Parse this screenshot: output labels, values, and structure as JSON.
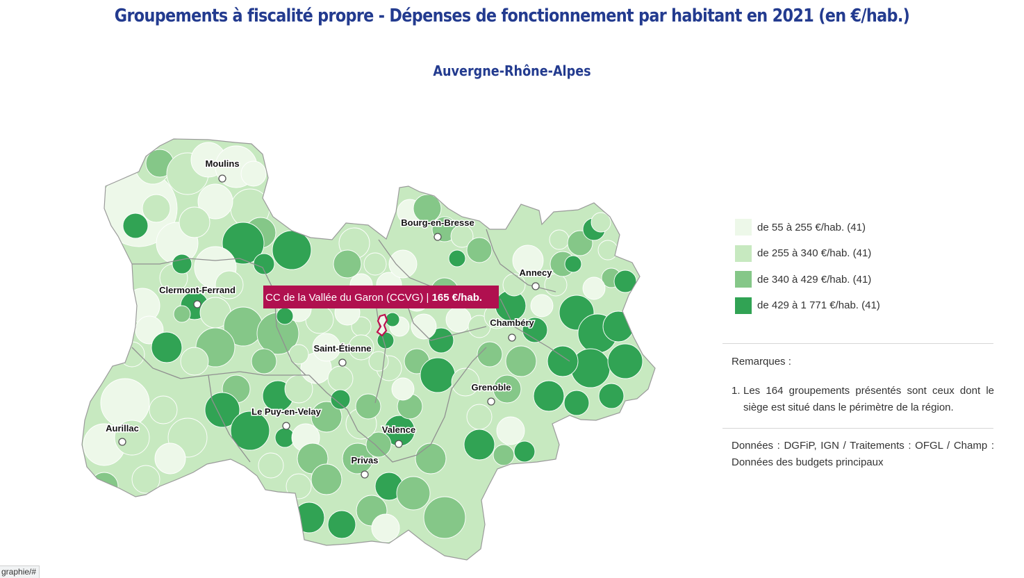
{
  "title": "Groupements à fiscalité propre - Dépenses de fonctionnement par habitant en 2021 (en €/hab.)",
  "subtitle": "Auvergne-Rhône-Alpes",
  "colors": {
    "class1": "#edf8e9",
    "class2": "#c7e9c0",
    "class3": "#85c788",
    "class4": "#31a354",
    "border": "#ffffff",
    "department_border": "#909090",
    "tooltip_bg": "#b0104f",
    "highlight": "#c0104f",
    "title": "#233b8f"
  },
  "legend": [
    {
      "label": "de 55 à 255 €/hab. (41)",
      "color": "#edf8e9"
    },
    {
      "label": "de 255 à 340 €/hab. (41)",
      "color": "#c7e9c0"
    },
    {
      "label": "de 340 à 429 €/hab. (41)",
      "color": "#85c788"
    },
    {
      "label": "de 429 à 1 771 €/hab. (41)",
      "color": "#31a354"
    }
  ],
  "cities": [
    {
      "name": "Moulins"
    },
    {
      "name": "Bourg-en-Bresse"
    },
    {
      "name": "Annecy"
    },
    {
      "name": "Clermont-Ferrand"
    },
    {
      "name": "Chambéry"
    },
    {
      "name": "Saint-Étienne"
    },
    {
      "name": "Grenoble"
    },
    {
      "name": "Le Puy-en-Velay"
    },
    {
      "name": "Aurillac"
    },
    {
      "name": "Valence"
    },
    {
      "name": "Privas"
    }
  ],
  "tooltip": {
    "name": "CC de la Vallée du Garon (CCVG) |",
    "value": "165 €/hab."
  },
  "remarks": {
    "title": "Remarques :",
    "items": [
      {
        "num": "1.",
        "text": "Les 164 groupements présentés sont ceux dont le siège est situé dans le périmètre de la région."
      }
    ]
  },
  "sources": "Données : DGFiP, IGN / Traitements : OFGL / Champ : Données des budgets principaux",
  "status_url": "graphie/#"
}
